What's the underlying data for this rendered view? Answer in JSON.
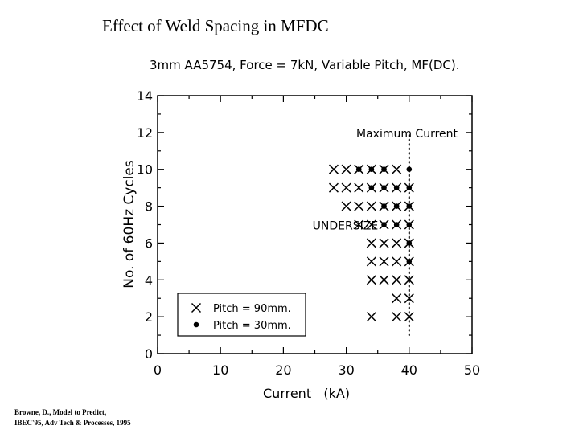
{
  "slide_title": "Effect of Weld Spacing in MFDC",
  "citation": {
    "line1": "Browne, D., Model to Predict,",
    "line2": "IBEC'95, Adv Tech & Processes, 1995"
  },
  "chart_data": {
    "type": "scatter",
    "title": "3mm AA5754, Force = 7kN, Variable Pitch, MF(DC).",
    "xlabel": "Current   (kA)",
    "ylabel": "No. of 60Hz Cycles",
    "xlim": [
      0,
      50
    ],
    "ylim": [
      0,
      14
    ],
    "x_ticks": [
      "0",
      "10",
      "20",
      "30",
      "40",
      "50"
    ],
    "y_ticks": [
      "0",
      "2",
      "4",
      "6",
      "8",
      "10",
      "12",
      "14"
    ],
    "grid": false,
    "legend_position": "bottom-left",
    "series": [
      {
        "name": "Pitch = 90mm.",
        "marker": "x",
        "points": [
          [
            28,
            10
          ],
          [
            30,
            10
          ],
          [
            32,
            10
          ],
          [
            34,
            10
          ],
          [
            36,
            10
          ],
          [
            38,
            10
          ],
          [
            28,
            9
          ],
          [
            30,
            9
          ],
          [
            32,
            9
          ],
          [
            34,
            9
          ],
          [
            36,
            9
          ],
          [
            38,
            9
          ],
          [
            40,
            9
          ],
          [
            30,
            8
          ],
          [
            32,
            8
          ],
          [
            34,
            8
          ],
          [
            36,
            8
          ],
          [
            38,
            8
          ],
          [
            40,
            8
          ],
          [
            32,
            7
          ],
          [
            34,
            7
          ],
          [
            36,
            7
          ],
          [
            38,
            7
          ],
          [
            40,
            7
          ],
          [
            34,
            6
          ],
          [
            36,
            6
          ],
          [
            38,
            6
          ],
          [
            40,
            6
          ],
          [
            34,
            5
          ],
          [
            36,
            5
          ],
          [
            38,
            5
          ],
          [
            40,
            5
          ],
          [
            34,
            4
          ],
          [
            36,
            4
          ],
          [
            38,
            4
          ],
          [
            40,
            4
          ],
          [
            38,
            3
          ],
          [
            40,
            3
          ],
          [
            34,
            2
          ],
          [
            38,
            2
          ],
          [
            40,
            2
          ]
        ]
      },
      {
        "name": "Pitch = 30mm.",
        "marker": "dot",
        "points": [
          [
            32,
            10
          ],
          [
            34,
            10
          ],
          [
            36,
            10
          ],
          [
            40,
            10
          ],
          [
            34,
            9
          ],
          [
            36,
            9
          ],
          [
            38,
            9
          ],
          [
            40,
            9
          ],
          [
            36,
            8
          ],
          [
            38,
            8
          ],
          [
            40,
            8
          ],
          [
            36,
            7
          ],
          [
            38,
            7
          ],
          [
            40,
            7
          ],
          [
            40,
            6
          ],
          [
            40,
            5
          ]
        ]
      }
    ],
    "annotations": [
      {
        "text": "Maximum Current",
        "x": 40,
        "y": 12
      },
      {
        "text": "UNDERSIZE",
        "x": 24,
        "y": 7
      }
    ],
    "reference_lines": [
      {
        "label": "Maximum Current",
        "orientation": "vertical",
        "x": 40,
        "y_range": [
          1,
          12
        ],
        "style": "dotted"
      }
    ]
  }
}
